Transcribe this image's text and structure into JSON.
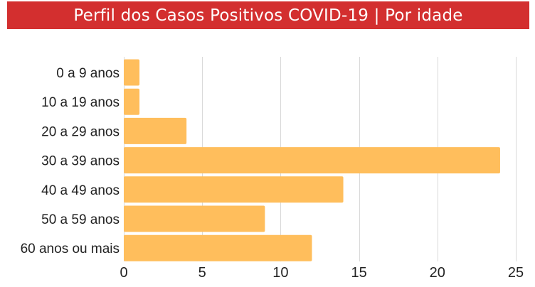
{
  "colors": {
    "title_bg": "#d32f2f",
    "bar": "#ffbe5c",
    "grid": "#d9d9d9",
    "text": "#222222"
  },
  "chart_data": {
    "type": "bar",
    "orientation": "horizontal",
    "title": "Perfil dos Casos Positivos COVID-19 | Por idade",
    "xlabel": "",
    "ylabel": "",
    "categories": [
      "0 a 9 anos",
      "10 a 19 anos",
      "20 a 29 anos",
      "30 a 39 anos",
      "40 a 49 anos",
      "50 a 59 anos",
      "60 anos ou mais"
    ],
    "values": [
      1,
      1,
      4,
      24,
      14,
      9,
      12
    ],
    "xlim": [
      0,
      25
    ],
    "xticks": [
      0,
      5,
      10,
      15,
      20,
      25
    ],
    "grid": "vertical",
    "legend": "none"
  }
}
